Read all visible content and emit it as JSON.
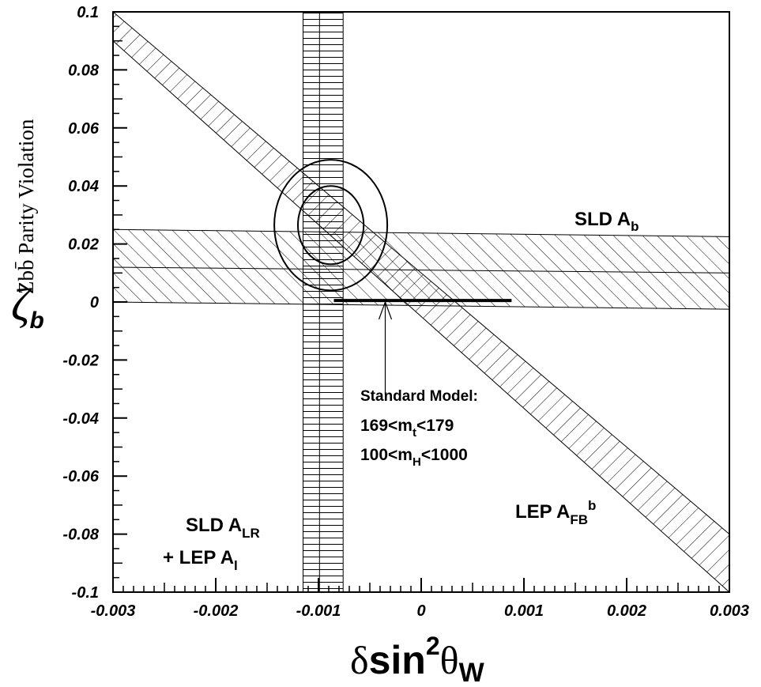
{
  "chart_data": {
    "type": "scatter",
    "title": "",
    "ylabel_secondary": "Zbb̄ Parity Violation",
    "xlim": [
      -0.003,
      0.003
    ],
    "ylim": [
      -0.1,
      0.1
    ],
    "x_ticks": [
      "-0.003",
      "-0.002",
      "-0.001",
      "0",
      "0.001",
      "0.002",
      "0.003"
    ],
    "x_tick_values": [
      -0.003,
      -0.002,
      -0.001,
      0,
      0.001,
      0.002,
      0.003
    ],
    "y_ticks": [
      "0.1",
      "0.08",
      "0.06",
      "0.04",
      "0.02",
      "0",
      "-0.02",
      "-0.04",
      "-0.06",
      "-0.08",
      "-0.1"
    ],
    "y_tick_values": [
      0.1,
      0.08,
      0.06,
      0.04,
      0.02,
      0,
      -0.02,
      -0.04,
      -0.06,
      -0.08,
      -0.1
    ],
    "bands": [
      {
        "name": "SLD A_b",
        "hatch": "diagonal",
        "upper": [
          [
            -0.003,
            0.025
          ],
          [
            0.003,
            0.0225
          ]
        ],
        "center": [
          [
            -0.003,
            0.012
          ],
          [
            0.003,
            0.01
          ]
        ],
        "lower": [
          [
            -0.003,
            0.0
          ],
          [
            0.003,
            -0.0025
          ]
        ]
      },
      {
        "name": "LEP A_FB^b",
        "hatch": "back-diagonal",
        "edge_a": [
          [
            -0.003,
            0.1
          ],
          [
            0.003,
            -0.08
          ]
        ],
        "edge_b": [
          [
            -0.003,
            0.09
          ],
          [
            0.003,
            -0.1
          ]
        ]
      },
      {
        "name": "SLD A_LR + LEP A_l",
        "hatch": "horizontal",
        "x_min": -0.00115,
        "x_center": -0.00099,
        "x_max": -0.00076
      }
    ],
    "ellipses": [
      {
        "cx": -0.00088,
        "cy": 0.0265,
        "rx": 0.00032,
        "ry": 0.0135
      },
      {
        "cx": -0.00088,
        "cy": 0.0265,
        "rx": 0.00055,
        "ry": 0.0225
      }
    ],
    "standard_model_line": {
      "x": [
        -0.00085,
        0.00088
      ],
      "y": [
        0.0005,
        0.0005
      ]
    },
    "arrow": {
      "from": [
        -0.00035,
        -0.032
      ],
      "to": [
        -0.00035,
        0.0
      ]
    },
    "annotations": {
      "sld_ab": {
        "main": "SLD A",
        "sub": "b"
      },
      "lep_afb": {
        "main": "LEP A",
        "sub": "FB",
        "sup": "b"
      },
      "sld_alr": {
        "main": "SLD A",
        "sub": "LR"
      },
      "lep_al": {
        "main": "+ LEP A",
        "sub": "l"
      },
      "standard_model": "Standard Model:",
      "mt_range": {
        "left": "169<m",
        "sub": "t",
        "right": "<179"
      },
      "mh_range": {
        "left": "100<m",
        "sub": "H",
        "right": "<1000"
      }
    },
    "xlabel": {
      "prefix": "δ",
      "main": "sin",
      "sup": "2",
      "theta": "θ",
      "sub": "W"
    },
    "ylabel": {
      "zeta": "ζ",
      "sub": "b"
    }
  }
}
